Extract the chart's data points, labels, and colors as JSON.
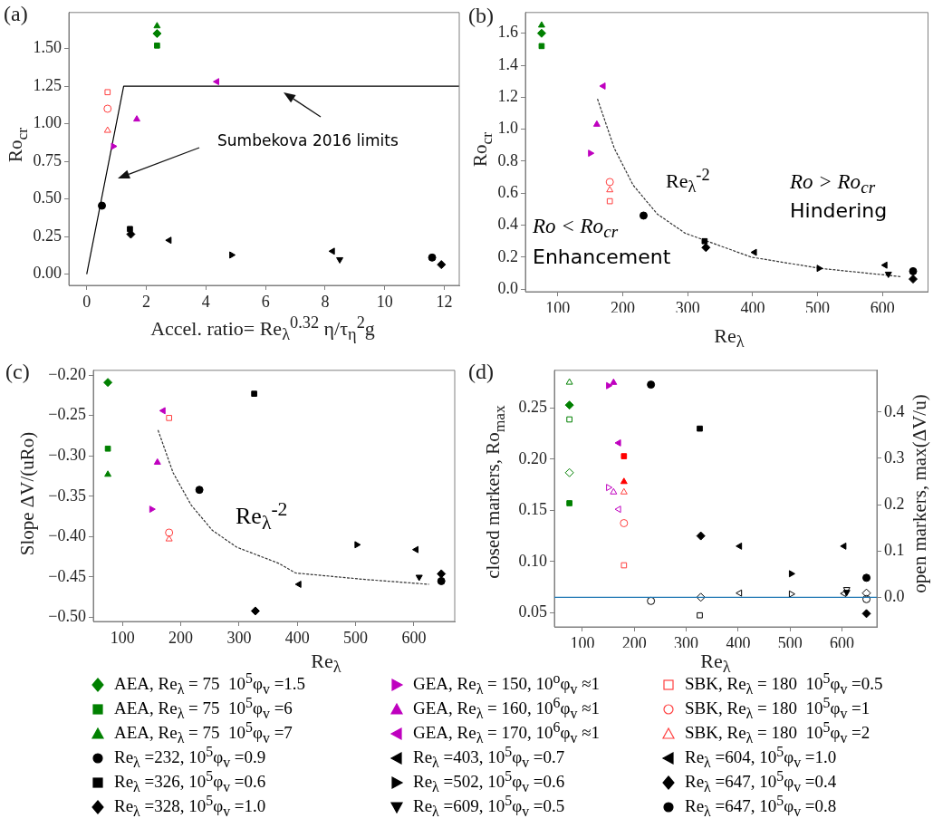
{
  "chart_data": [
    {
      "type": "scatter",
      "title": "(a)",
      "xlabel": "Accel. ratio= Re$_{λ}$$^{0.32}$ η/τ$_{η}$$^{2}$g",
      "ylabel": "Ro$_{cr}$",
      "xlim": [
        -0.6,
        12.5
      ],
      "ylim": [
        -0.075,
        1.74
      ],
      "xticks": [
        0,
        2,
        4,
        6,
        8,
        10,
        12
      ],
      "yticks": [
        {
          "value": 0,
          "label": "0.00"
        },
        {
          "value": 0.25,
          "label": "0.25"
        },
        {
          "value": 0.5,
          "label": "0.50"
        },
        {
          "value": 0.75,
          "label": "0.75"
        },
        {
          "value": 1,
          "label": "1.00"
        },
        {
          "value": 1.25,
          "label": "1.25"
        },
        {
          "value": 1.5,
          "label": "1.50"
        }
      ],
      "grid": false,
      "legend": "bottom",
      "annotations": [
        "Sumbekova 2016 limits"
      ],
      "series": [
        {
          "name": "AEA, Re$_{λ}$ = 75  10$^{5}$φ$_{v}$ =1.5",
          "color": "#008000",
          "marker": "diamond",
          "x": [
            2.36
          ],
          "values": [
            1.6
          ]
        },
        {
          "name": "AEA, Re$_{λ}$ = 75  10$^{5}$φ$_{v}$ =6",
          "color": "#008000",
          "marker": "square",
          "x": [
            2.36
          ],
          "values": [
            1.52
          ]
        },
        {
          "name": "AEA, Re$_{λ}$ = 75  10$^{5}$φ$_{v}$ =7",
          "color": "#008000",
          "marker": "triangle",
          "x": [
            2.36
          ],
          "values": [
            1.65
          ]
        },
        {
          "name": "Re$_{λ}$ =232, 10$^{5}$φ$_{v}$ =0.9",
          "color": "#000000",
          "marker": "circle",
          "x": [
            0.51
          ],
          "values": [
            0.455
          ]
        },
        {
          "name": "Re$_{λ}$ =326, 10$^{5}$φ$_{v}$ =0.6",
          "color": "#000000",
          "marker": "square",
          "x": [
            1.45
          ],
          "values": [
            0.3
          ]
        },
        {
          "name": "Re$_{λ}$ =328, 10$^{5}$φ$_{v}$ =1.0",
          "color": "#000000",
          "marker": "diamond",
          "x": [
            1.48
          ],
          "values": [
            0.265
          ]
        },
        {
          "name": "GEA, Re$_{λ}$ = 150, 10$^{o}$φ$_{v}$ ≈1",
          "color": "#bf00bf",
          "marker": "triangle-right",
          "x": [
            0.89
          ],
          "values": [
            0.85
          ]
        },
        {
          "name": "GEA, Re$_{λ}$ = 160, 10$^{6}$φ$_{v}$ ≈1",
          "color": "#bf00bf",
          "marker": "triangle",
          "x": [
            1.68
          ],
          "values": [
            1.03
          ]
        },
        {
          "name": "GEA, Re$_{λ}$ = 170, 10$^{6}$φ$_{v}$ ≈1",
          "color": "#bf00bf",
          "marker": "triangle-left",
          "x": [
            4.37
          ],
          "values": [
            1.28
          ]
        },
        {
          "name": "Re$_{λ}$ =403, 10$^{5}$φ$_{v}$ =0.7",
          "color": "#000000",
          "marker": "triangle-left",
          "x": [
            2.77
          ],
          "values": [
            0.225
          ]
        },
        {
          "name": "Re$_{λ}$ =502, 10$^{5}$φ$_{v}$ =0.6",
          "color": "#000000",
          "marker": "triangle-right",
          "x": [
            4.86
          ],
          "values": [
            0.127
          ]
        },
        {
          "name": "Re$_{λ}$ =609, 10$^{5}$φ$_{v}$ =0.5",
          "color": "#000000",
          "marker": "triangle-down",
          "x": [
            8.49
          ],
          "values": [
            0.097
          ]
        },
        {
          "name": "SBK, Re$_{λ}$ = 180  10$^{5}$φ$_{v}$ =0.5",
          "color": "#ff4040",
          "marker": "square-open",
          "x": [
            0.7
          ],
          "values": [
            1.21
          ]
        },
        {
          "name": "SBK, Re$_{λ}$ = 180  10$^{5}$φ$_{v}$ =1",
          "color": "#ff4040",
          "marker": "circle-open",
          "x": [
            0.7
          ],
          "values": [
            1.1
          ]
        },
        {
          "name": "SBK, Re$_{λ}$ = 180  10$^{5}$φ$_{v}$ =2",
          "color": "#ff4040",
          "marker": "triangle-open",
          "x": [
            0.7
          ],
          "values": [
            0.955
          ]
        },
        {
          "name": "Re$_{λ}$ =604, 10$^{5}$φ$_{v}$ =1.0",
          "color": "#000000",
          "marker": "triangle-left",
          "x": [
            8.25
          ],
          "values": [
            0.152
          ]
        },
        {
          "name": "Re$_{λ}$ =647, 10$^{5}$φ$_{v}$ =0.4",
          "color": "#000000",
          "marker": "diamond",
          "x": [
            11.9
          ],
          "values": [
            0.063
          ]
        },
        {
          "name": "Re$_{λ}$ =647, 10$^{5}$φ$_{v}$ =0.8",
          "color": "#000000",
          "marker": "circle",
          "x": [
            11.59
          ],
          "values": [
            0.11
          ]
        },
        {
          "type": "line",
          "color": "#000000",
          "marker": "none",
          "line_style": "solid",
          "x": [
            0,
            1.24,
            12.5
          ],
          "values": [
            0,
            1.25,
            1.25
          ]
        }
      ]
    },
    {
      "type": "scatter",
      "title": "(b)",
      "xlabel": "Re$_{λ}$",
      "ylabel": "Ro$_{cr}$",
      "xlim": [
        50,
        670
      ],
      "ylim": [
        -0.016,
        1.73
      ],
      "xticks": [
        100,
        200,
        300,
        400,
        500,
        600
      ],
      "yticks": [
        {
          "value": 0,
          "label": "0.0"
        },
        {
          "value": 0.2,
          "label": "0.2"
        },
        {
          "value": 0.4,
          "label": "0.4"
        },
        {
          "value": 0.6,
          "label": "0.6"
        },
        {
          "value": 0.8,
          "label": "0.8"
        },
        {
          "value": 1,
          "label": "1.0"
        },
        {
          "value": 1.2,
          "label": "1.2"
        },
        {
          "value": 1.4,
          "label": "1.4"
        },
        {
          "value": 1.6,
          "label": "1.6"
        }
      ],
      "grid": false,
      "annotations": [
        "Re$_{λ}$$^{-2}$",
        "Ro > Ro$_{cr}$",
        "Hindering",
        "Ro < Ro$_{cr}$",
        "Enhancement"
      ],
      "series": [
        {
          "color": "#008000",
          "marker": "diamond",
          "x": [
            75
          ],
          "values": [
            1.6
          ]
        },
        {
          "color": "#008000",
          "marker": "square",
          "x": [
            75
          ],
          "values": [
            1.52
          ]
        },
        {
          "color": "#008000",
          "marker": "triangle",
          "x": [
            75
          ],
          "values": [
            1.65
          ]
        },
        {
          "color": "#000000",
          "marker": "circle",
          "x": [
            232
          ],
          "values": [
            0.46
          ]
        },
        {
          "color": "#000000",
          "marker": "square",
          "x": [
            326
          ],
          "values": [
            0.3
          ]
        },
        {
          "color": "#000000",
          "marker": "diamond",
          "x": [
            328
          ],
          "values": [
            0.26
          ]
        },
        {
          "color": "#bf00bf",
          "marker": "triangle-right",
          "x": [
            150
          ],
          "values": [
            0.85
          ]
        },
        {
          "color": "#bf00bf",
          "marker": "triangle",
          "x": [
            160
          ],
          "values": [
            1.03
          ]
        },
        {
          "color": "#bf00bf",
          "marker": "triangle-left",
          "x": [
            170
          ],
          "values": [
            1.27
          ]
        },
        {
          "color": "#000000",
          "marker": "triangle-left",
          "x": [
            403
          ],
          "values": [
            0.23
          ]
        },
        {
          "color": "#000000",
          "marker": "triangle-right",
          "x": [
            502
          ],
          "values": [
            0.13
          ]
        },
        {
          "color": "#000000",
          "marker": "triangle-down",
          "x": [
            609
          ],
          "values": [
            0.095
          ]
        },
        {
          "color": "#ff4040",
          "marker": "square-open",
          "x": [
            180
          ],
          "values": [
            0.55
          ]
        },
        {
          "color": "#ff4040",
          "marker": "circle-open",
          "x": [
            180
          ],
          "values": [
            0.67
          ]
        },
        {
          "color": "#ff4040",
          "marker": "triangle-open",
          "x": [
            180
          ],
          "values": [
            0.62
          ]
        },
        {
          "color": "#000000",
          "marker": "triangle-left",
          "x": [
            604
          ],
          "values": [
            0.15
          ]
        },
        {
          "color": "#000000",
          "marker": "diamond",
          "x": [
            647
          ],
          "values": [
            0.063
          ]
        },
        {
          "color": "#000000",
          "marker": "circle",
          "x": [
            647
          ],
          "values": [
            0.112
          ]
        },
        {
          "type": "line",
          "color": "#333333",
          "marker": "none",
          "line_style": "dashed",
          "x": [
            161,
            187,
            216,
            253,
            296,
            330,
            398,
            504,
            629
          ],
          "values": [
            1.19,
            0.88,
            0.65,
            0.47,
            0.35,
            0.3,
            0.2,
            0.13,
            0.078
          ]
        }
      ]
    },
    {
      "type": "scatter",
      "title": "(c)",
      "xlabel": "Re$_{λ}$",
      "ylabel": "Slope ΔV/(uRo)",
      "xlim": [
        50,
        670
      ],
      "ylim": [
        -0.505,
        -0.194
      ],
      "xticks": [
        100,
        200,
        300,
        400,
        500,
        600
      ],
      "yticks": [
        {
          "value": -0.5,
          "label": "−0.50"
        },
        {
          "value": -0.45,
          "label": "−0.45"
        },
        {
          "value": -0.4,
          "label": "−0.40"
        },
        {
          "value": -0.35,
          "label": "−0.35"
        },
        {
          "value": -0.3,
          "label": "−0.30"
        },
        {
          "value": -0.25,
          "label": "−0.25"
        },
        {
          "value": -0.2,
          "label": "−0.20"
        }
      ],
      "grid": false,
      "annotations": [
        "Re$_{λ}$$^{-2}$"
      ],
      "series": [
        {
          "color": "#008000",
          "marker": "diamond",
          "x": [
            75
          ],
          "values": [
            -0.209
          ]
        },
        {
          "color": "#008000",
          "marker": "square",
          "x": [
            75
          ],
          "values": [
            -0.291
          ]
        },
        {
          "color": "#008000",
          "marker": "triangle",
          "x": [
            75
          ],
          "values": [
            -0.323
          ]
        },
        {
          "color": "#000000",
          "marker": "circle",
          "x": [
            232
          ],
          "values": [
            -0.342
          ]
        },
        {
          "color": "#000000",
          "marker": "square",
          "x": [
            326
          ],
          "values": [
            -0.223
          ]
        },
        {
          "color": "#000000",
          "marker": "diamond",
          "x": [
            328
          ],
          "values": [
            -0.492
          ]
        },
        {
          "color": "#bf00bf",
          "marker": "triangle-right",
          "x": [
            150
          ],
          "values": [
            -0.366
          ]
        },
        {
          "color": "#bf00bf",
          "marker": "triangle",
          "x": [
            160
          ],
          "values": [
            -0.308
          ]
        },
        {
          "color": "#bf00bf",
          "marker": "triangle-left",
          "x": [
            170
          ],
          "values": [
            -0.244
          ]
        },
        {
          "color": "#000000",
          "marker": "triangle-left",
          "x": [
            403
          ],
          "values": [
            -0.459
          ]
        },
        {
          "color": "#000000",
          "marker": "triangle-right",
          "x": [
            502
          ],
          "values": [
            -0.41
          ]
        },
        {
          "color": "#000000",
          "marker": "triangle-down",
          "x": [
            609
          ],
          "values": [
            -0.45
          ]
        },
        {
          "color": "#ff4040",
          "marker": "square-open",
          "x": [
            180
          ],
          "values": [
            -0.253
          ]
        },
        {
          "color": "#ff4040",
          "marker": "circle-open",
          "x": [
            180
          ],
          "values": [
            -0.395
          ]
        },
        {
          "color": "#ff4040",
          "marker": "triangle-open",
          "x": [
            180
          ],
          "values": [
            -0.403
          ]
        },
        {
          "color": "#000000",
          "marker": "triangle-left",
          "x": [
            604
          ],
          "values": [
            -0.416
          ]
        },
        {
          "color": "#000000",
          "marker": "diamond",
          "x": [
            647
          ],
          "values": [
            -0.446
          ]
        },
        {
          "color": "#000000",
          "marker": "circle",
          "x": [
            647
          ],
          "values": [
            -0.455
          ]
        },
        {
          "type": "line",
          "color": "#333333",
          "marker": "none",
          "line_style": "dashed",
          "x": [
            161,
            187,
            218,
            254,
            296,
            368,
            397,
            516,
            626
          ],
          "values": [
            -0.268,
            -0.321,
            -0.361,
            -0.392,
            -0.413,
            -0.433,
            -0.445,
            -0.453,
            -0.459
          ]
        }
      ]
    },
    {
      "type": "scatter",
      "title": "(d)",
      "xlabel": "Re$_{λ}$",
      "ylabel": "closed markers, Ro$_{max}$",
      "y2label": "open markers, max(ΔV/u)",
      "xlim": [
        46,
        667
      ],
      "ylim": [
        0.036,
        0.287
      ],
      "y2lim": [
        -0.064,
        0.49
      ],
      "xticks": [
        100,
        200,
        300,
        400,
        500,
        600
      ],
      "yticks": [
        {
          "value": 0.05,
          "label": "0.05"
        },
        {
          "value": 0.1,
          "label": "0.10"
        },
        {
          "value": 0.15,
          "label": "0.15"
        },
        {
          "value": 0.2,
          "label": "0.20"
        },
        {
          "value": 0.25,
          "label": "0.25"
        }
      ],
      "y2ticks": [
        {
          "value": 0,
          "label": "0.0"
        },
        0.1,
        0.2,
        0.3,
        0.4
      ],
      "grid": false,
      "ref_lines": [
        {
          "axis": "y2",
          "value": 0,
          "color": "#1f77b4"
        }
      ],
      "series": [
        {
          "color": "#008000",
          "marker": "diamond",
          "x": [
            75
          ],
          "values": [
            0.253
          ]
        },
        {
          "color": "#008000",
          "marker": "square",
          "x": [
            75
          ],
          "values": [
            0.157
          ]
        },
        {
          "color": "#000000",
          "marker": "circle",
          "x": [
            232
          ],
          "values": [
            0.273
          ]
        },
        {
          "color": "#000000",
          "marker": "square",
          "x": [
            326
          ],
          "values": [
            0.23
          ]
        },
        {
          "color": "#000000",
          "marker": "diamond",
          "x": [
            328
          ],
          "values": [
            0.125
          ]
        },
        {
          "color": "#bf00bf",
          "marker": "triangle-right",
          "x": [
            150
          ],
          "values": [
            0.272
          ]
        },
        {
          "color": "#bf00bf",
          "marker": "triangle",
          "x": [
            160
          ],
          "values": [
            0.275
          ]
        },
        {
          "color": "#bf00bf",
          "marker": "triangle-left",
          "x": [
            170
          ],
          "values": [
            0.216
          ]
        },
        {
          "color": "#000000",
          "marker": "triangle-left",
          "x": [
            403
          ],
          "values": [
            0.115
          ]
        },
        {
          "color": "#000000",
          "marker": "triangle-right",
          "x": [
            502
          ],
          "values": [
            0.088
          ]
        },
        {
          "color": "#000000",
          "marker": "triangle-down",
          "x": [
            609
          ],
          "values": [
            0.07
          ]
        },
        {
          "color": "#ff0000",
          "marker": "square",
          "x": [
            180
          ],
          "values": [
            0.203
          ]
        },
        {
          "color": "#ff0000",
          "marker": "triangle",
          "x": [
            180
          ],
          "values": [
            0.178
          ]
        },
        {
          "color": "#000000",
          "marker": "triangle-left",
          "x": [
            604
          ],
          "values": [
            0.115
          ]
        },
        {
          "color": "#000000",
          "marker": "diamond",
          "x": [
            647
          ],
          "values": [
            0.049
          ]
        },
        {
          "color": "#000000",
          "marker": "circle",
          "x": [
            647
          ],
          "values": [
            0.084
          ]
        },
        {
          "color": "#008000",
          "marker": "triangle-open",
          "axis": "y2",
          "x": [
            75
          ],
          "values": [
            0.464
          ]
        },
        {
          "color": "#008000",
          "marker": "square-open",
          "axis": "y2",
          "x": [
            75
          ],
          "values": [
            0.384
          ]
        },
        {
          "color": "#008000",
          "marker": "diamond-open",
          "axis": "y2",
          "x": [
            75
          ],
          "values": [
            0.269
          ]
        },
        {
          "color": "#bf00bf",
          "marker": "triangle-right-open",
          "axis": "y2",
          "x": [
            150
          ],
          "values": [
            0.237
          ]
        },
        {
          "color": "#bf00bf",
          "marker": "triangle-open",
          "axis": "y2",
          "x": [
            160
          ],
          "values": [
            0.227
          ]
        },
        {
          "color": "#bf00bf",
          "marker": "triangle-left-open",
          "axis": "y2",
          "x": [
            170
          ],
          "values": [
            0.19
          ]
        },
        {
          "color": "#ff4040",
          "marker": "triangle-open",
          "axis": "y2",
          "x": [
            180
          ],
          "values": [
            0.227
          ]
        },
        {
          "color": "#ff4040",
          "marker": "circle-open",
          "axis": "y2",
          "x": [
            180
          ],
          "values": [
            0.16
          ]
        },
        {
          "color": "#ff4040",
          "marker": "square-open",
          "axis": "y2",
          "x": [
            180
          ],
          "values": [
            0.069
          ]
        },
        {
          "color": "#000000",
          "marker": "circle-open",
          "axis": "y2",
          "x": [
            232
          ],
          "values": [
            -0.008
          ]
        },
        {
          "color": "#000000",
          "marker": "square-open",
          "axis": "y2",
          "x": [
            326
          ],
          "values": [
            -0.039
          ]
        },
        {
          "color": "#000000",
          "marker": "diamond-open",
          "axis": "y2",
          "x": [
            328
          ],
          "values": [
            0.0
          ]
        },
        {
          "color": "#000000",
          "marker": "triangle-left-open",
          "axis": "y2",
          "x": [
            403
          ],
          "values": [
            0.009
          ]
        },
        {
          "color": "#000000",
          "marker": "triangle-right-open",
          "axis": "y2",
          "x": [
            502
          ],
          "values": [
            0.007
          ]
        },
        {
          "color": "#000000",
          "marker": "triangle-left-open",
          "axis": "y2",
          "x": [
            604
          ],
          "values": [
            0.008
          ]
        },
        {
          "color": "#000000",
          "marker": "triangle-down-open",
          "axis": "y2",
          "x": [
            609
          ],
          "values": [
            0.017
          ]
        },
        {
          "color": "#000000",
          "marker": "diamond-open",
          "axis": "y2",
          "x": [
            647
          ],
          "values": [
            0.009
          ]
        },
        {
          "color": "#000000",
          "marker": "circle-open",
          "axis": "y2",
          "x": [
            647
          ],
          "values": [
            -0.004
          ]
        }
      ]
    }
  ]
}
